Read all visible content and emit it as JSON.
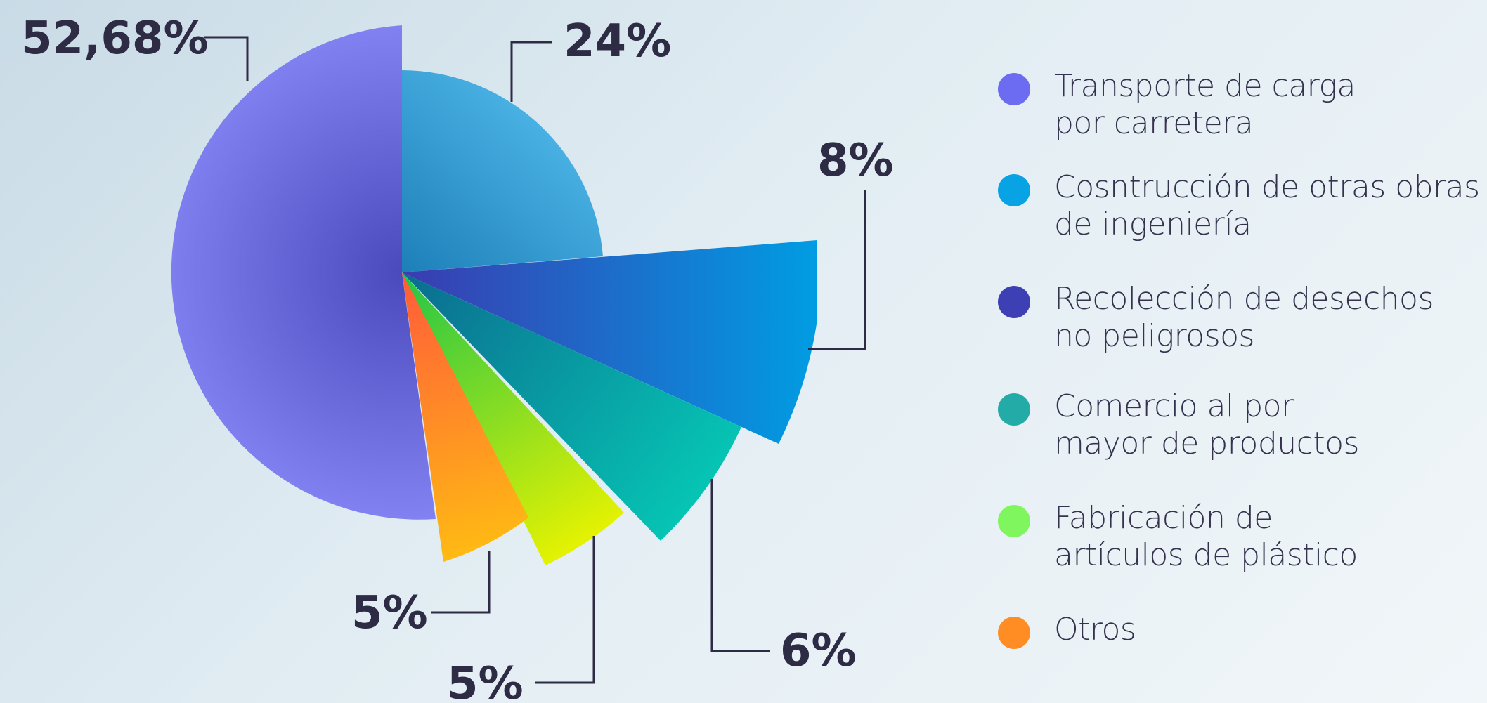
{
  "chart_data": {
    "type": "pie",
    "slices": [
      {
        "label": "Transporte de carga\npor carretera",
        "value": 52.68,
        "display": "52,68%",
        "color": "#6f6fe8"
      },
      {
        "label": "Cosntrucción de otras obras\nde ingeniería",
        "value": 24,
        "display": "24%",
        "color": "#1aa0e0"
      },
      {
        "label": "Recolección de desechos\nno peligrosos",
        "value": 8,
        "display": "8%",
        "color": "#3c3fb1"
      },
      {
        "label": "Comercio al por\nmayor de productos",
        "value": 6,
        "display": "6%",
        "color": "#22aaa6"
      },
      {
        "label": "Fabricación de\nartículos de plástico",
        "value": 5,
        "display": "5%",
        "color": "#7ef55e"
      },
      {
        "label": "Otros",
        "value": 5,
        "display": "5%",
        "color": "#ff8d22"
      }
    ],
    "legend_position": "right"
  }
}
